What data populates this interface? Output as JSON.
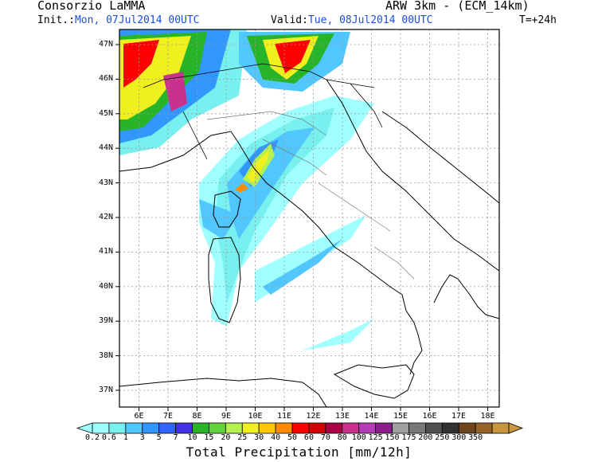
{
  "header": {
    "org": "Consorzio LaMMA",
    "init_label": "Init.:",
    "init_value": "Mon, 07Jul2014 00UTC",
    "model": "ARW 3km - (ECM_14km)",
    "valid_label": "Valid:",
    "valid_value": "Tue, 08Jul2014 00UTC",
    "lead": "T=+24h"
  },
  "map": {
    "lat_labels": [
      "47N",
      "46N",
      "45N",
      "44N",
      "43N",
      "42N",
      "41N",
      "40N",
      "39N",
      "38N",
      "37N"
    ],
    "lon_labels": [
      "6E",
      "7E",
      "8E",
      "9E",
      "10E",
      "11E",
      "12E",
      "13E",
      "14E",
      "15E",
      "16E",
      "17E",
      "18E"
    ]
  },
  "colorbar": {
    "title": "Total Precipitation [mm/12h]",
    "levels": [
      "0.2",
      "0.6",
      "1",
      "3",
      "5",
      "7",
      "10",
      "15",
      "20",
      "25",
      "30",
      "40",
      "50",
      "60",
      "70",
      "80",
      "100",
      "125",
      "150",
      "175",
      "200",
      "250",
      "300",
      "350"
    ],
    "colors": [
      "#a0ffff",
      "#78f0f0",
      "#50c8ff",
      "#3296ff",
      "#3264ff",
      "#4632e6",
      "#28b428",
      "#64d23c",
      "#b4f050",
      "#f0f01e",
      "#ffc800",
      "#ff8c00",
      "#ff0000",
      "#d20000",
      "#aa0046",
      "#c8328c",
      "#b43cb4",
      "#8c1e8c",
      "#a0a0a0",
      "#787878",
      "#505050",
      "#323232",
      "#6e461e",
      "#966428",
      "#c8963c"
    ]
  }
}
